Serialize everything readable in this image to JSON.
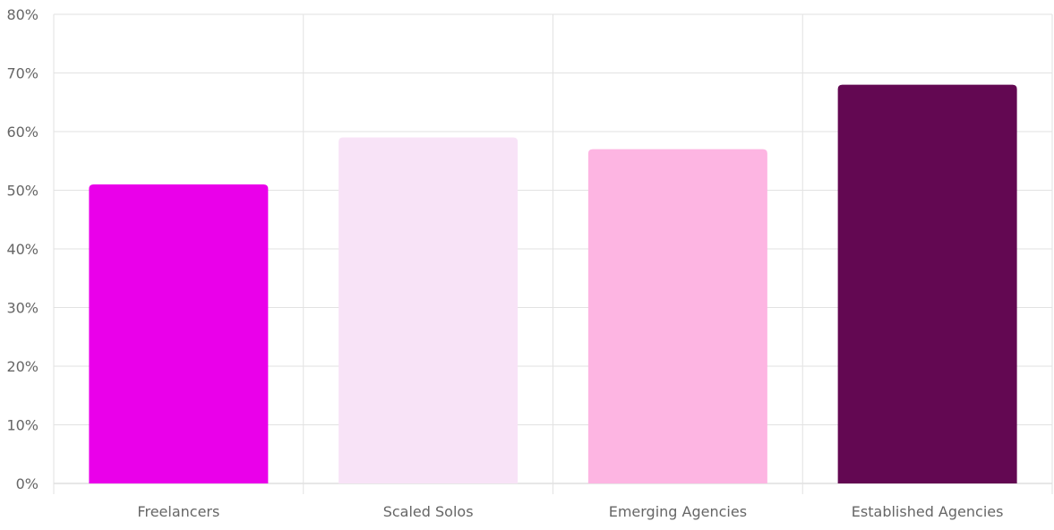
{
  "chart_data": {
    "type": "bar",
    "categories": [
      "Freelancers",
      "Scaled Solos",
      "Emerging Agencies",
      "Established Agencies"
    ],
    "values": [
      51,
      59,
      57,
      68
    ],
    "colors": [
      "#ea00ea",
      "#f8e3f7",
      "#fdb5e2",
      "#630852"
    ],
    "ylim": [
      0,
      80
    ],
    "yticks": [
      0,
      10,
      20,
      30,
      40,
      50,
      60,
      70,
      80
    ],
    "ytick_format": "percent",
    "grid": true,
    "title": "",
    "xlabel": "",
    "ylabel": ""
  }
}
